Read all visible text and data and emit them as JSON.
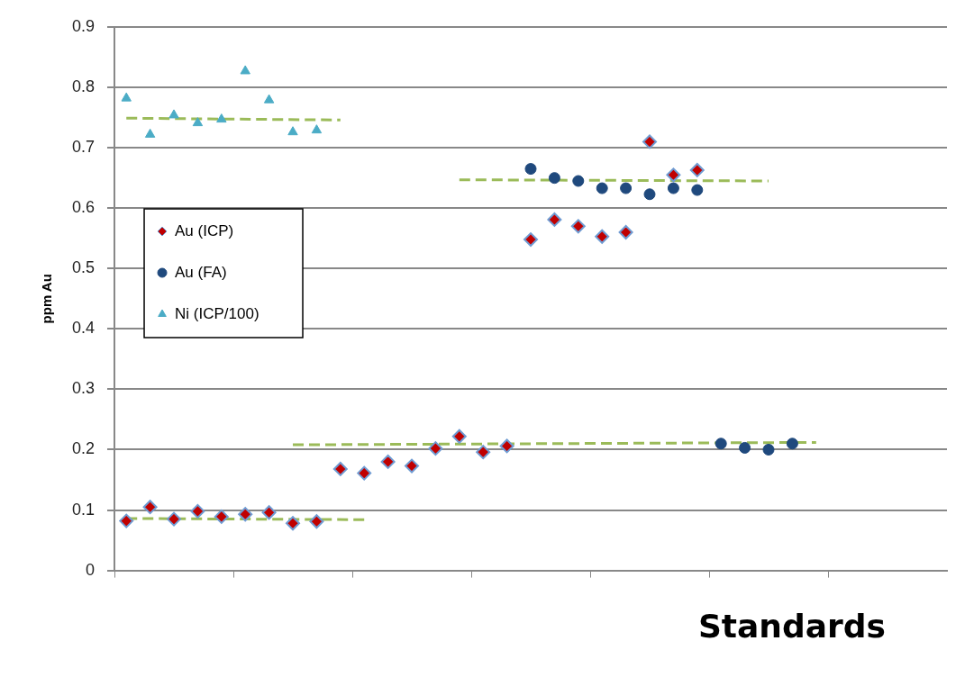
{
  "chart_data": {
    "type": "scatter",
    "xlabel": "Standards",
    "ylabel": "ppm Au",
    "categories": [
      null,
      null,
      null,
      null,
      null,
      null,
      null,
      null,
      null,
      null,
      null,
      null,
      null,
      null,
      null,
      null,
      null,
      null,
      null,
      null,
      null,
      null,
      null,
      null,
      null,
      null,
      null,
      null,
      null,
      null,
      null,
      null,
      null,
      null,
      null
    ],
    "ylim": [
      0,
      0.9
    ],
    "yticks": [
      0,
      0.1,
      0.2,
      0.3,
      0.4,
      0.5,
      0.6,
      0.7,
      0.8,
      0.9
    ],
    "grid": "y",
    "legend": "left",
    "series": [
      {
        "name": "Au (ICP)",
        "color": "#c00000",
        "marker": "diamond",
        "values": [
          0.082,
          0.105,
          0.085,
          0.098,
          0.089,
          0.093,
          0.096,
          0.078,
          0.081,
          0.168,
          0.161,
          0.18,
          0.173,
          0.202,
          0.222,
          0.196,
          0.206,
          0.548,
          0.581,
          0.57,
          0.553,
          0.56,
          0.71,
          0.655,
          0.663,
          null,
          null,
          null,
          null,
          null,
          null,
          null,
          null,
          null,
          null
        ]
      },
      {
        "name": "Au (FA)",
        "color": "#1f497d",
        "marker": "circle",
        "values": [
          null,
          null,
          null,
          null,
          null,
          null,
          null,
          null,
          null,
          null,
          null,
          null,
          null,
          null,
          null,
          null,
          null,
          0.665,
          0.65,
          0.645,
          0.633,
          0.633,
          0.623,
          0.633,
          0.63,
          0.21,
          0.203,
          0.2,
          0.21,
          null,
          null,
          null,
          null,
          null,
          null
        ]
      },
      {
        "name": "Ni (ICP/100)",
        "color": "#4bacc6",
        "marker": "triangle",
        "values": [
          0.782,
          0.722,
          0.754,
          0.741,
          0.747,
          0.827,
          0.779,
          0.726,
          0.729,
          null,
          null,
          null,
          null,
          null,
          null,
          null,
          null,
          null,
          null,
          null,
          null,
          null,
          null,
          null,
          null,
          null,
          null,
          null,
          null,
          null,
          null,
          null,
          null,
          null,
          null
        ]
      },
      {
        "type": "line",
        "color": "#9bbb59",
        "marker": "none",
        "line_style": "dashed",
        "values": [
          0.749,
          null,
          null,
          null,
          null,
          null,
          null,
          null,
          null,
          0.746,
          null,
          null,
          null,
          null,
          null,
          null,
          null,
          null,
          null,
          null,
          null,
          null,
          null,
          null,
          null,
          null,
          null,
          null,
          null,
          null,
          null,
          null,
          null,
          null,
          null
        ]
      },
      {
        "type": "line",
        "color": "#9bbb59",
        "marker": "none",
        "line_style": "dashed",
        "values": [
          0.086,
          null,
          null,
          null,
          null,
          null,
          null,
          null,
          null,
          null,
          0.084,
          null,
          null,
          null,
          null,
          null,
          null,
          null,
          null,
          null,
          null,
          null,
          null,
          null,
          null,
          null,
          null,
          null,
          null,
          null,
          null,
          null,
          null,
          null,
          null
        ]
      },
      {
        "type": "line",
        "color": "#9bbb59",
        "marker": "none",
        "line_style": "dashed",
        "values": [
          null,
          null,
          null,
          null,
          null,
          null,
          null,
          0.208,
          null,
          null,
          null,
          null,
          null,
          null,
          null,
          null,
          null,
          null,
          null,
          null,
          null,
          null,
          null,
          null,
          null,
          null,
          null,
          null,
          null,
          0.212,
          null,
          null,
          null,
          null,
          null
        ]
      },
      {
        "type": "line",
        "color": "#9bbb59",
        "marker": "none",
        "line_style": "dashed",
        "values": [
          null,
          null,
          null,
          null,
          null,
          null,
          null,
          null,
          null,
          null,
          null,
          null,
          null,
          null,
          0.647,
          null,
          null,
          null,
          null,
          null,
          null,
          null,
          null,
          null,
          null,
          null,
          null,
          0.645,
          null,
          null,
          null,
          null,
          null,
          null,
          null
        ]
      }
    ]
  }
}
